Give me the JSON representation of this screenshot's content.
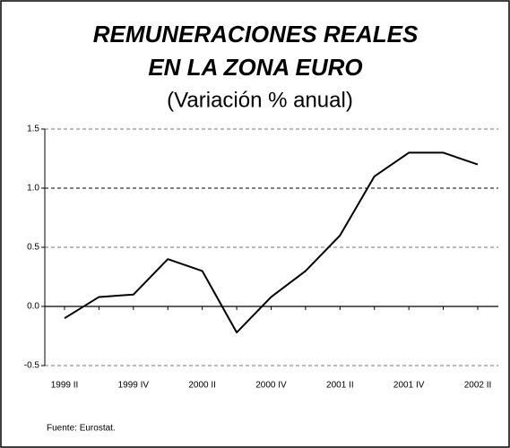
{
  "chart_data": {
    "type": "line",
    "title": [
      "REMUNERACIONES REALES",
      "EN LA ZONA EURO"
    ],
    "subtitle": "(Variación % anual)",
    "source": "Fuente: Eurostat.",
    "categories": [
      "1999 II",
      null,
      "1999 IV",
      null,
      "2000 II",
      null,
      "2000 IV",
      null,
      "2001 II",
      null,
      "2001 IV",
      null,
      "2002 II"
    ],
    "series": [
      {
        "color": "#000000",
        "values": [
          -0.1,
          0.08,
          0.1,
          0.4,
          0.3,
          -0.22,
          0.08,
          0.3,
          0.6,
          1.1,
          1.3,
          1.3,
          1.2
        ]
      }
    ],
    "ylim": [
      -0.5,
      1.5
    ],
    "yticks": [
      -0.5,
      {
        "value": 0,
        "label": "0.0"
      },
      0.5,
      {
        "value": 1,
        "label": "1.0"
      },
      1.5
    ],
    "grid": true
  }
}
